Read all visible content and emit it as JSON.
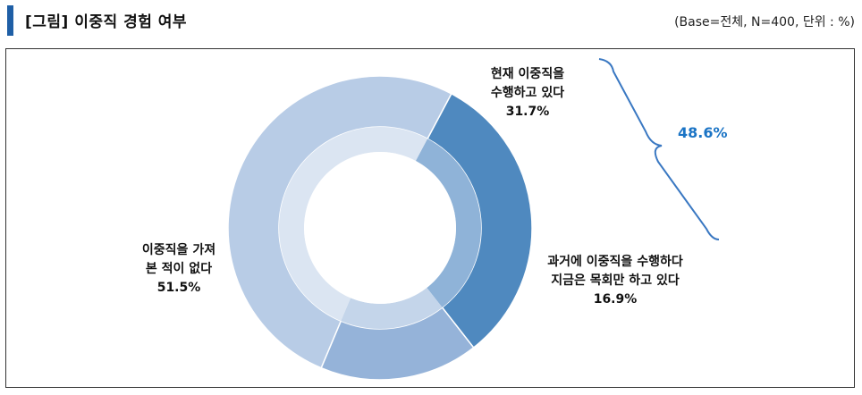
{
  "header": {
    "title": "[그림] 이중직 경험 여부",
    "base_note": "(Base=전체, N=400, 단위 : %)"
  },
  "chart_data": {
    "type": "pie",
    "style": "donut",
    "slices": [
      {
        "label_lines": [
          "현재 이중직을",
          "수행하고 있다"
        ],
        "value": 31.7,
        "value_label": "31.7%",
        "color": "#4f89bf",
        "inner_color": "#8fb3d8"
      },
      {
        "label_lines": [
          "과거에 이중직을 수행하다",
          "지금은 목회만 하고 있다"
        ],
        "value": 16.9,
        "value_label": "16.9%",
        "color": "#95b3d9",
        "inner_color": "#c4d5ea"
      },
      {
        "label_lines": [
          "이중직을 가져",
          "본 적이 없다"
        ],
        "value": 51.5,
        "value_label": "51.5%",
        "color": "#b8cce6",
        "inner_color": "#dbe5f2"
      }
    ],
    "annotation": {
      "text": "48.6%",
      "color": "#1b74c5"
    }
  }
}
